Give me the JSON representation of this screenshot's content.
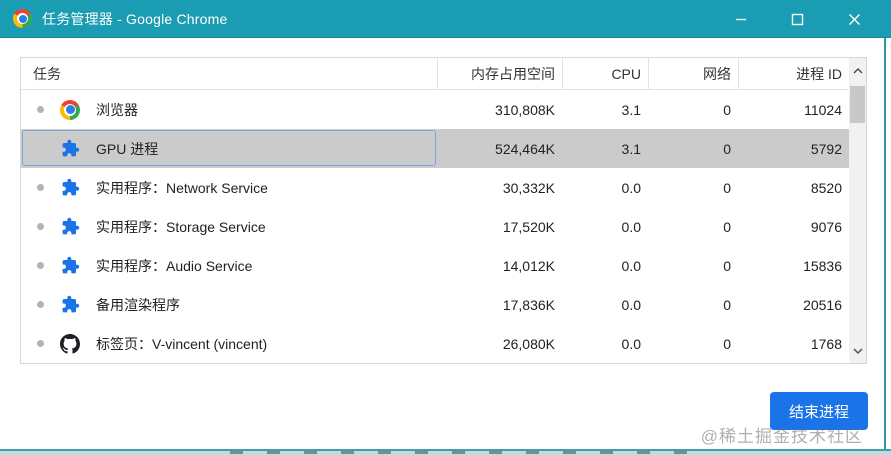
{
  "window": {
    "title": "任务管理器 - Google Chrome",
    "controls": {
      "minimize": "minimize",
      "maximize": "maximize",
      "close": "close"
    }
  },
  "colors": {
    "titlebar": "#1a9db2",
    "selected_row": "#cbcbcb",
    "focus_ring": "#78a7dc",
    "accent_button": "#1a73e8",
    "extension_icon": "#1a73e8"
  },
  "table": {
    "columns": [
      {
        "label": "任务",
        "align": "left"
      },
      {
        "label": "内存占用空间",
        "align": "right"
      },
      {
        "label": "CPU",
        "align": "right"
      },
      {
        "label": "网络",
        "align": "right"
      },
      {
        "label": "进程 ID",
        "align": "right"
      }
    ],
    "rows": [
      {
        "icon": "chrome-icon",
        "bullet": true,
        "selected": false,
        "task": "浏览器",
        "memory": "310,808K",
        "cpu": "3.1",
        "network": "0",
        "pid": "11024"
      },
      {
        "icon": "extension-icon",
        "bullet": false,
        "selected": true,
        "task": "GPU 进程",
        "memory": "524,464K",
        "cpu": "3.1",
        "network": "0",
        "pid": "5792"
      },
      {
        "icon": "extension-icon",
        "bullet": true,
        "selected": false,
        "task": "实用程序：Network Service",
        "memory": "30,332K",
        "cpu": "0.0",
        "network": "0",
        "pid": "8520"
      },
      {
        "icon": "extension-icon",
        "bullet": true,
        "selected": false,
        "task": "实用程序：Storage Service",
        "memory": "17,520K",
        "cpu": "0.0",
        "network": "0",
        "pid": "9076"
      },
      {
        "icon": "extension-icon",
        "bullet": true,
        "selected": false,
        "task": "实用程序：Audio Service",
        "memory": "14,012K",
        "cpu": "0.0",
        "network": "0",
        "pid": "15836"
      },
      {
        "icon": "extension-icon",
        "bullet": true,
        "selected": false,
        "task": "备用渲染程序",
        "memory": "17,836K",
        "cpu": "0.0",
        "network": "0",
        "pid": "20516"
      },
      {
        "icon": "github-icon",
        "bullet": true,
        "selected": false,
        "task": "标签页：V-vincent (vincent)",
        "memory": "26,080K",
        "cpu": "0.0",
        "network": "0",
        "pid": "1768"
      }
    ]
  },
  "footer": {
    "end_process_label": "结束进程"
  },
  "watermark": "@稀土掘金技术社区"
}
